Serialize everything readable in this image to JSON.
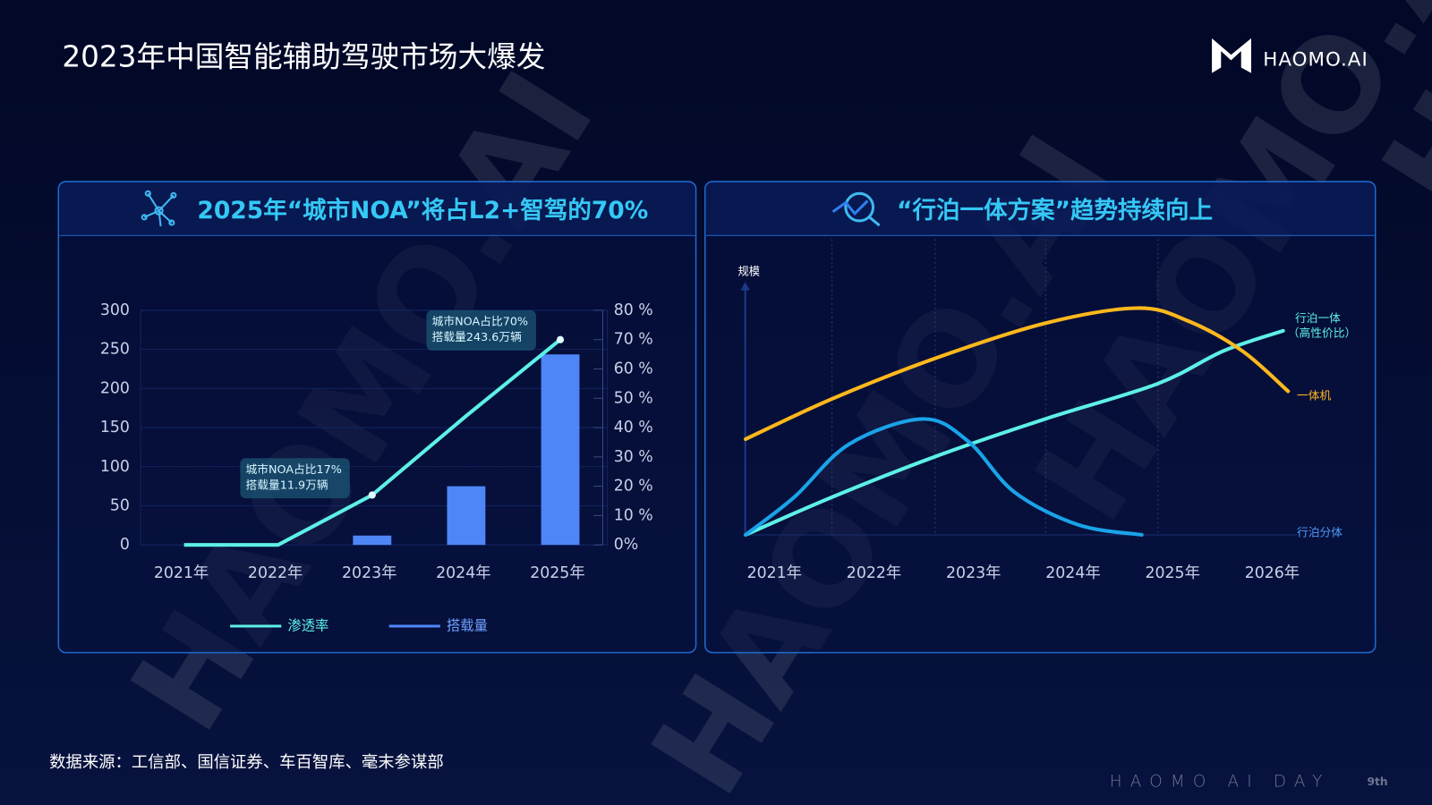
{
  "page": {
    "title": "2023年中国智能辅助驾驶市场大爆发",
    "logo": "HAOMO.AI",
    "watermark": "HAOMO.AI",
    "source": "数据来源：工信部、国信证券、车百智库、毫末参谋部",
    "event": "HAOMO AI DAY",
    "edition": "9th"
  },
  "chart_data": [
    {
      "type": "combo",
      "title": "2025年“城市NOA”将占L2+智驾的70%",
      "categories": [
        "2021年",
        "2022年",
        "2023年",
        "2024年",
        "2025年"
      ],
      "ylim": [
        0,
        300
      ],
      "yticks": [
        0,
        50,
        100,
        150,
        200,
        250,
        300
      ],
      "y2lim": [
        0,
        80
      ],
      "y2ticks": [
        {
          "value": 0,
          "label": "0%"
        },
        {
          "value": 10,
          "label": "10 %"
        },
        {
          "value": 20,
          "label": "20 %"
        },
        {
          "value": 30,
          "label": "30 %"
        },
        {
          "value": 40,
          "label": "40 %"
        },
        {
          "value": 50,
          "label": "50 %"
        },
        {
          "value": 60,
          "label": "60 %"
        },
        {
          "value": 70,
          "label": "70 %"
        },
        {
          "value": 80,
          "label": "80 %"
        }
      ],
      "series": [
        {
          "name": "渗透率",
          "type": "line",
          "axis": "y2",
          "color": "#5ef0e6",
          "values": [
            0,
            0,
            17,
            44,
            70
          ]
        },
        {
          "name": "搭载量",
          "type": "bar",
          "color": "#4f86f7",
          "values": [
            0,
            0,
            11.9,
            75,
            243.6
          ]
        }
      ],
      "annotations": [
        [
          "城市NOA占比17%",
          "搭载量11.9万辆"
        ],
        [
          "城市NOA占比70%",
          "搭载量243.6万辆"
        ]
      ],
      "grid": true,
      "legend": "bottom"
    },
    {
      "type": "line",
      "title": "“行泊一体方案”趋势持续向上",
      "ylabel": "规模",
      "xlim": [
        2020.7,
        2026.25
      ],
      "xticks": [
        {
          "value": 2021,
          "label": "2021年"
        },
        {
          "value": 2022,
          "label": "2022年"
        },
        {
          "value": 2023,
          "label": "2023年"
        },
        {
          "value": 2024,
          "label": "2024年"
        },
        {
          "value": 2025,
          "label": "2025年"
        },
        {
          "value": 2026,
          "label": "2026年"
        }
      ],
      "ylim": [
        0,
        100
      ],
      "series": [
        {
          "name": "行泊一体（高性价比）",
          "color": "#5ef0e6",
          "x": [
            2020.71,
            2021.58,
            2022.61,
            2023.72,
            2024.85,
            2025.51,
            2026.11
          ],
          "values": [
            0,
            15,
            31,
            46,
            60,
            73,
            81
          ]
        },
        {
          "name": "一体机",
          "color": "#ffb81c",
          "x": [
            2020.71,
            2021.58,
            2022.61,
            2023.72,
            2024.64,
            2025.15,
            2025.7,
            2026.16
          ],
          "values": [
            38,
            54,
            70,
            84,
            90,
            85,
            73,
            57
          ]
        },
        {
          "name": "行泊分体",
          "color": "#1aa3e8",
          "x": [
            2020.71,
            2021.2,
            2021.75,
            2022.49,
            2022.95,
            2023.41,
            2024.05,
            2024.69
          ],
          "values": [
            0,
            15,
            36,
            46,
            37,
            17,
            4,
            0
          ]
        }
      ]
    }
  ]
}
